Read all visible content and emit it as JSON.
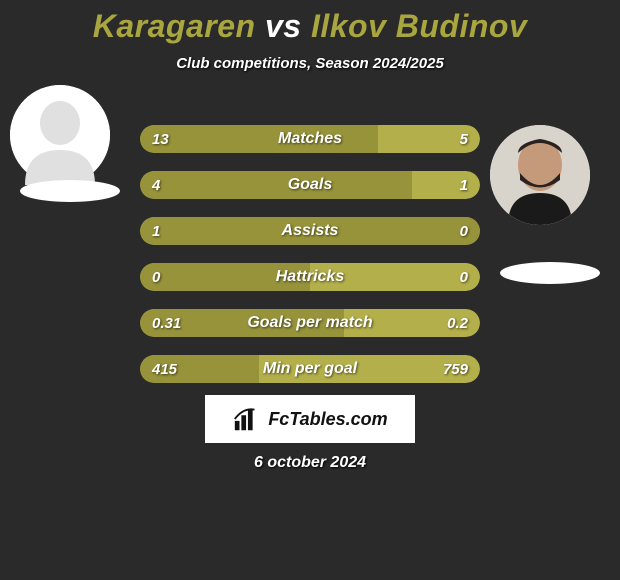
{
  "title": {
    "player1": "Karagaren",
    "vs": "vs",
    "player2": "Ilkov Budinov",
    "player1_color": "#a9a63f",
    "vs_color": "#ffffff",
    "player2_color": "#a9a63f"
  },
  "subtitle": "Club competitions, Season 2024/2025",
  "chart": {
    "bar_color_dark": "#96933a",
    "bar_color_light": "#b3af4a",
    "track_color": "#b3af4a",
    "rows": [
      {
        "label": "Matches",
        "left_val": "13",
        "right_val": "5",
        "left_pct": 70,
        "right_pct": 30
      },
      {
        "label": "Goals",
        "left_val": "4",
        "right_val": "1",
        "left_pct": 80,
        "right_pct": 20
      },
      {
        "label": "Assists",
        "left_val": "1",
        "right_val": "0",
        "left_pct": 100,
        "right_pct": 0
      },
      {
        "label": "Hattricks",
        "left_val": "0",
        "right_val": "0",
        "left_pct": 50,
        "right_pct": 50
      },
      {
        "label": "Goals per match",
        "left_val": "0.31",
        "right_val": "0.2",
        "left_pct": 60,
        "right_pct": 40
      },
      {
        "label": "Min per goal",
        "left_val": "415",
        "right_val": "759",
        "left_pct": 35,
        "right_pct": 65
      }
    ]
  },
  "brand": "FcTables.com",
  "date": "6 october 2024",
  "colors": {
    "background": "#2a2a2a",
    "text": "#ffffff"
  }
}
